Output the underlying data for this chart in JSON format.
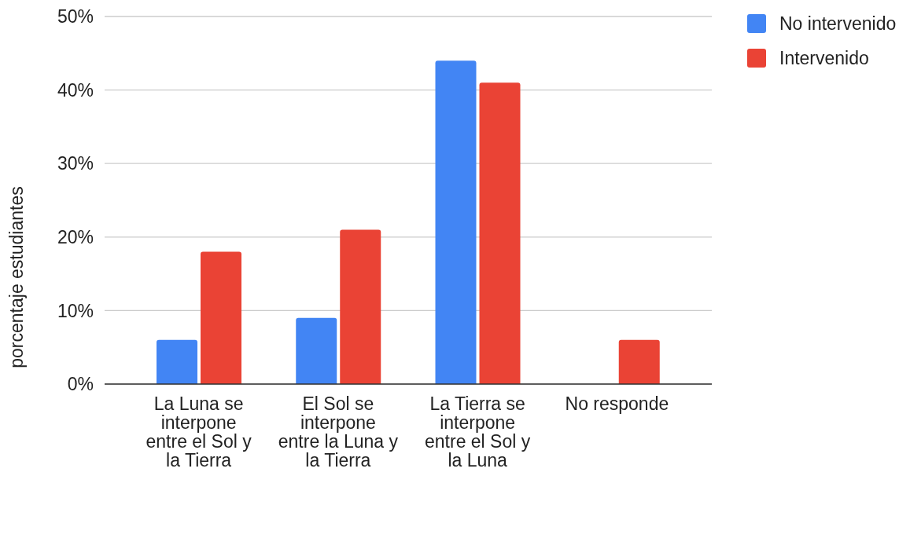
{
  "chart_data": {
    "type": "bar",
    "categories": [
      "La Luna se\ninterpone\nentre el Sol y\nla Tierra",
      "El Sol se\ninterpone\nentre la Luna y\nla Tierra",
      "La Tierra se\ninterpone\nentre el Sol y\nla Luna",
      "No responde"
    ],
    "series": [
      {
        "name": "No intervenido",
        "color": "#4285f4",
        "values": [
          6,
          9,
          44,
          0
        ]
      },
      {
        "name": "Intervenido",
        "color": "#ea4335",
        "values": [
          18,
          21,
          41,
          6
        ]
      }
    ],
    "ylabel": "porcentaje estudiantes",
    "ylim": [
      0,
      50
    ],
    "yticks": [
      {
        "value": 0,
        "label": "0%"
      },
      {
        "value": 10,
        "label": "10%"
      },
      {
        "value": 20,
        "label": "20%"
      },
      {
        "value": 30,
        "label": "30%"
      },
      {
        "value": 40,
        "label": "40%"
      },
      {
        "value": 50,
        "label": "50%"
      }
    ],
    "grid": "y",
    "legend": "top right"
  }
}
